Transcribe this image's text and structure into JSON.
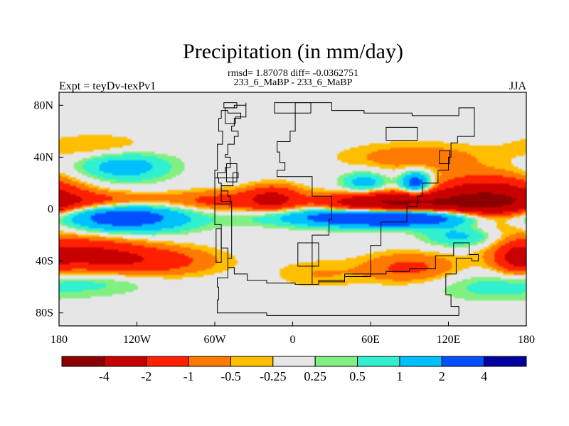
{
  "chart_data": {
    "type": "heatmap",
    "title": "Precipitation (in mm/day)",
    "stats_line": "rmsd= 1.87078 diff= -0.0362751",
    "subtitle": "233_6_MaBP - 233_6_MaBP",
    "left_label": "Expt = teyDv-texPv1",
    "right_label": "JJA",
    "x_range": [
      -180,
      180
    ],
    "y_range": [
      -90,
      90
    ],
    "x_ticks": [
      {
        "value": -180,
        "label": "180"
      },
      {
        "value": -120,
        "label": "120W"
      },
      {
        "value": -60,
        "label": "60W"
      },
      {
        "value": 0,
        "label": "0"
      },
      {
        "value": 60,
        "label": "60E"
      },
      {
        "value": 120,
        "label": "120E"
      },
      {
        "value": 180,
        "label": "180"
      }
    ],
    "y_ticks": [
      {
        "value": 80,
        "label": "80N"
      },
      {
        "value": 40,
        "label": "40N"
      },
      {
        "value": 0,
        "label": "0"
      },
      {
        "value": -40,
        "label": "40S"
      },
      {
        "value": -80,
        "label": "80S"
      }
    ],
    "colorbar": {
      "colors": [
        "#8b0000",
        "#c80000",
        "#ff2000",
        "#ff7a00",
        "#ffbf00",
        "#e6e6e6",
        "#80f080",
        "#30f0d0",
        "#00c0ff",
        "#0050ff",
        "#0000a0"
      ],
      "tick_labels": [
        "-4",
        "-2",
        "-1",
        "-0.5",
        "-0.25",
        "0.25",
        "0.5",
        "1",
        "2",
        "4"
      ],
      "tick_positions": [
        1,
        2,
        3,
        4,
        5,
        6,
        7,
        8,
        9,
        10
      ]
    },
    "field_features": [
      {
        "lon": 150,
        "lat": 5,
        "dlon": 30,
        "dlat": 12,
        "value": -4.5
      },
      {
        "lon": 75,
        "lat": 4,
        "dlon": 35,
        "dlat": 6,
        "value": -4.5
      },
      {
        "lon": -140,
        "lat": 6,
        "dlon": 40,
        "dlat": 5,
        "value": -1.5
      },
      {
        "lon": -55,
        "lat": 6,
        "dlon": 25,
        "dlat": 6,
        "value": -1.2
      },
      {
        "lon": -15,
        "lat": 8,
        "dlon": 15,
        "dlat": 7,
        "value": -2.2
      },
      {
        "lon": 80,
        "lat": -6,
        "dlon": 55,
        "dlat": 5,
        "value": 5
      },
      {
        "lon": -130,
        "lat": -6,
        "dlon": 35,
        "dlat": 8,
        "value": 3
      },
      {
        "lon": -160,
        "lat": -35,
        "dlon": 30,
        "dlat": 10,
        "value": -2
      },
      {
        "lon": -110,
        "lat": -40,
        "dlon": 35,
        "dlat": 8,
        "value": -1.5
      },
      {
        "lon": 90,
        "lat": -45,
        "dlon": 25,
        "dlat": 8,
        "value": -1.2
      },
      {
        "lon": 172,
        "lat": -38,
        "dlon": 10,
        "dlat": 8,
        "value": -1.5
      },
      {
        "lon": -130,
        "lat": 33,
        "dlon": 25,
        "dlat": 8,
        "value": 1.5
      },
      {
        "lon": -150,
        "lat": 48,
        "dlon": 30,
        "dlat": 7,
        "value": -0.6
      },
      {
        "lon": 95,
        "lat": 40,
        "dlon": 40,
        "dlat": 8,
        "value": -0.8
      },
      {
        "lon": 95,
        "lat": 20,
        "dlon": 8,
        "dlat": 6,
        "value": 3
      },
      {
        "lon": 55,
        "lat": 20,
        "dlon": 12,
        "dlat": 6,
        "value": 1.5
      },
      {
        "lon": 130,
        "lat": -20,
        "dlon": 20,
        "dlat": 6,
        "value": 1.5
      },
      {
        "lon": -150,
        "lat": -55,
        "dlon": 30,
        "dlat": 8,
        "value": 0.7
      },
      {
        "lon": 150,
        "lat": -60,
        "dlon": 30,
        "dlat": 8,
        "value": 0.6
      },
      {
        "lon": 20,
        "lat": -50,
        "dlon": 25,
        "dlat": 8,
        "value": -0.5
      }
    ],
    "land_boxes": [
      {
        "lon": -48,
        "lat": 80,
        "dlon": 10,
        "dlat": 4
      },
      {
        "lon": 0,
        "lat": 78,
        "dlon": 28,
        "dlat": 8
      },
      {
        "lon": 84,
        "lat": 58,
        "dlon": 24,
        "dlat": 10
      },
      {
        "lon": -47,
        "lat": 28,
        "dlon": 8,
        "dlat": 14
      },
      {
        "lon": -57,
        "lat": -28,
        "dlon": 4,
        "dlat": 26
      },
      {
        "lon": 12,
        "lat": -35,
        "dlon": 16,
        "dlat": 18
      },
      {
        "lon": 117,
        "lat": 40,
        "dlon": 8,
        "dlat": 10
      }
    ],
    "land_polygons": [
      [
        [
          -52,
          78
        ],
        [
          -45,
          80
        ],
        [
          -36,
          82
        ],
        [
          -36,
          71
        ],
        [
          -44,
          66
        ],
        [
          -52,
          70
        ]
      ],
      [
        [
          2,
          82
        ],
        [
          30,
          82
        ],
        [
          30,
          76
        ],
        [
          55,
          74
        ],
        [
          92,
          72
        ],
        [
          128,
          78
        ],
        [
          140,
          72
        ],
        [
          140,
          56
        ],
        [
          127,
          51
        ],
        [
          122,
          40
        ],
        [
          120,
          30
        ],
        [
          112,
          20
        ],
        [
          100,
          10
        ],
        [
          96,
          2
        ],
        [
          88,
          -10
        ],
        [
          68,
          -28
        ],
        [
          60,
          -34
        ],
        [
          60,
          -50
        ],
        [
          40,
          -55
        ],
        [
          20,
          -58
        ],
        [
          15,
          -42
        ],
        [
          15,
          -20
        ],
        [
          28,
          -8
        ],
        [
          30,
          10
        ],
        [
          15,
          25
        ],
        [
          -12,
          30
        ],
        [
          -6,
          36
        ],
        [
          -10,
          44
        ],
        [
          -12,
          52
        ],
        [
          -2,
          60
        ],
        [
          2,
          70
        ]
      ],
      [
        [
          -60,
          24
        ],
        [
          -42,
          28
        ],
        [
          -46,
          18
        ],
        [
          -55,
          6
        ],
        [
          -47,
          -20
        ],
        [
          -47,
          -38
        ],
        [
          -50,
          -53
        ],
        [
          -58,
          -60
        ],
        [
          -57,
          -70
        ],
        [
          -58,
          -80
        ],
        [
          -20,
          -82
        ],
        [
          50,
          -82
        ],
        [
          128,
          -82
        ],
        [
          128,
          -75
        ],
        [
          122,
          -66
        ],
        [
          118,
          -50
        ],
        [
          126,
          -38
        ],
        [
          138,
          -40
        ],
        [
          143,
          -35
        ],
        [
          136,
          -26
        ],
        [
          124,
          -36
        ],
        [
          110,
          -46
        ],
        [
          90,
          -48
        ],
        [
          72,
          -50
        ],
        [
          60,
          -52
        ],
        [
          40,
          -56
        ],
        [
          20,
          -58
        ],
        [
          2,
          -57
        ],
        [
          -20,
          -55
        ],
        [
          -35,
          -50
        ],
        [
          -45,
          -45
        ],
        [
          -50,
          -30
        ],
        [
          -55,
          -12
        ],
        [
          -60,
          0
        ]
      ],
      [
        [
          -60,
          12
        ],
        [
          -60,
          4
        ],
        [
          -48,
          10
        ],
        [
          -50,
          14
        ],
        [
          -55,
          20
        ],
        [
          -57,
          24
        ],
        [
          -58,
          28
        ],
        [
          -52,
          32
        ],
        [
          -48,
          40
        ],
        [
          -52,
          42
        ],
        [
          -50,
          50
        ],
        [
          -45,
          56
        ],
        [
          -42,
          60
        ],
        [
          -47,
          64
        ],
        [
          -45,
          70
        ],
        [
          -40,
          74
        ],
        [
          -50,
          76
        ],
        [
          -55,
          70
        ],
        [
          -57,
          60
        ],
        [
          -54,
          50
        ],
        [
          -58,
          40
        ],
        [
          -58,
          30
        ],
        [
          -60,
          20
        ]
      ]
    ]
  }
}
